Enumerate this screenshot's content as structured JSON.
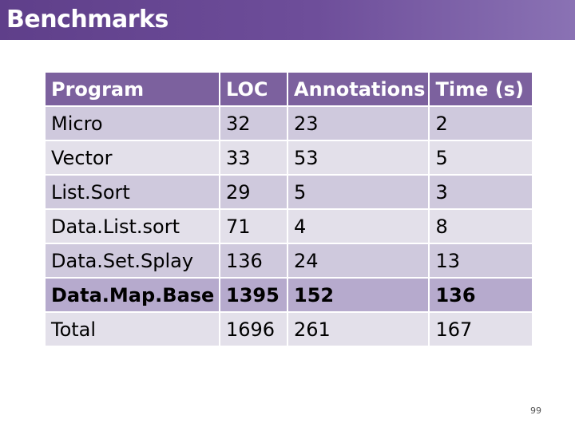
{
  "title": "Benchmarks",
  "table": {
    "headers": [
      "Program",
      "LOC",
      "Annotations",
      "Time (s)"
    ],
    "rows": [
      [
        "Micro",
        "32",
        "23",
        "2"
      ],
      [
        "Vector",
        "33",
        "53",
        "5"
      ],
      [
        "List.Sort",
        "29",
        "5",
        "3"
      ],
      [
        "Data.List.sort",
        "71",
        "4",
        "8"
      ],
      [
        "Data.Set.Splay",
        "136",
        "24",
        "13"
      ],
      [
        "Data.Map.Base",
        "1395",
        "152",
        "136"
      ],
      [
        "Total",
        "1696",
        "261",
        "167"
      ]
    ],
    "emphasized_row": "Data.Map.Base"
  },
  "page_number": "99",
  "colors": {
    "title_bar": "#6e4e9a",
    "header_row": "#7c619e",
    "row_light": "#e3e0ea",
    "row_mid": "#cfc9dd",
    "row_emphasis": "#b6aacd"
  }
}
